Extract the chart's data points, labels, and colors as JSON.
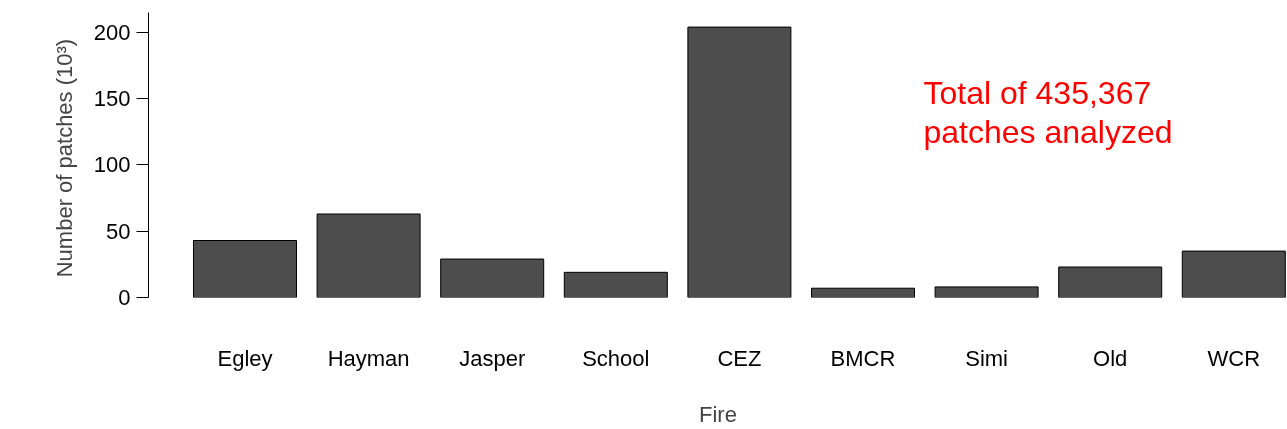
{
  "chart_data": {
    "type": "bar",
    "xlabel": "Fire",
    "ylabel": "Number of patches  (10³)",
    "categories": [
      "Egley",
      "Hayman",
      "Jasper",
      "School",
      "CEZ",
      "BMCR",
      "Simi",
      "Old",
      "WCR"
    ],
    "values": [
      43,
      63,
      29,
      19,
      204,
      7,
      8,
      23,
      35
    ],
    "color": "#4d4d4d",
    "ylim": [
      0,
      215
    ],
    "yticks": [
      0,
      50,
      100,
      150,
      200
    ],
    "grid": false,
    "annotations": [
      "Total of 435,367\npatches analyzed"
    ]
  }
}
